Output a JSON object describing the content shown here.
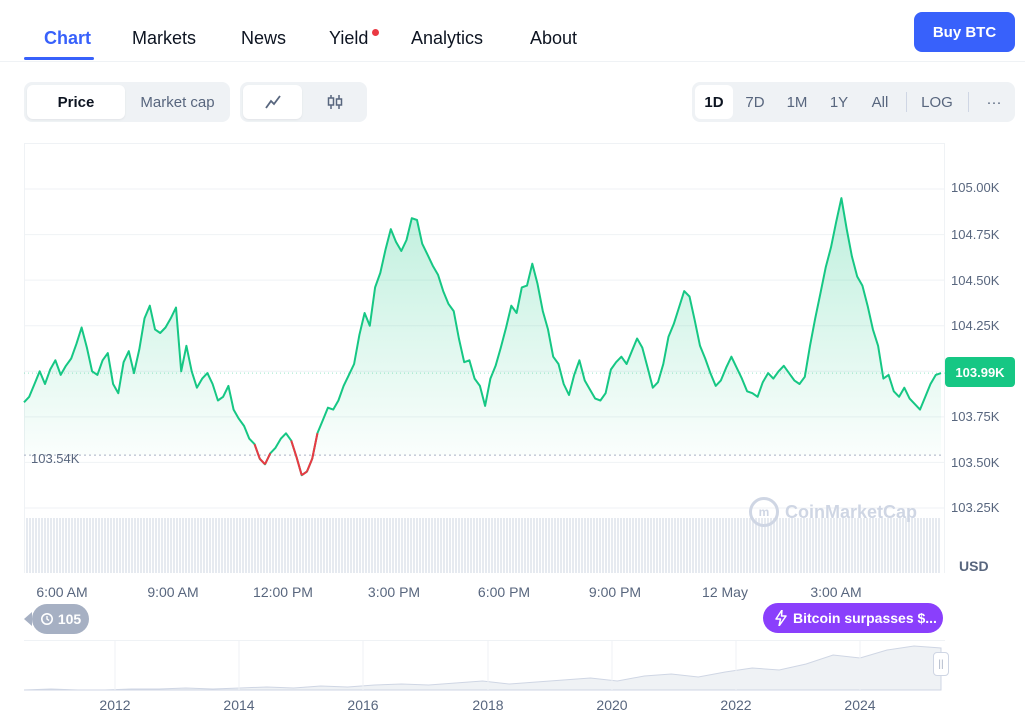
{
  "nav": {
    "tabs": [
      {
        "label": "Chart"
      },
      {
        "label": "Markets"
      },
      {
        "label": "News"
      },
      {
        "label": "Yield"
      },
      {
        "label": "Analytics"
      },
      {
        "label": "About"
      }
    ],
    "buy_label": "Buy BTC"
  },
  "controls": {
    "metric": [
      "Price",
      "Market cap"
    ],
    "chart_types": [
      "line-chart-icon",
      "candlestick-icon"
    ],
    "ranges": [
      "1D",
      "7D",
      "1M",
      "1Y",
      "All",
      "LOG"
    ],
    "more": "···"
  },
  "chart": {
    "current_price": "103.99K",
    "low_label": "103.54K",
    "currency": "USD",
    "watermark": "CoinMarketCap",
    "event_count": "105",
    "news": "Bitcoin surpasses $...",
    "y_ticks": [
      "105.00K",
      "104.75K",
      "104.50K",
      "104.25K",
      "103.75K",
      "103.50K",
      "103.25K"
    ],
    "x_ticks": [
      "6:00 AM",
      "9:00 AM",
      "12:00 PM",
      "3:00 PM",
      "6:00 PM",
      "9:00 PM",
      "12 May",
      "3:00 AM"
    ],
    "years": [
      "2012",
      "2014",
      "2016",
      "2018",
      "2020",
      "2022",
      "2024"
    ],
    "up_color": "#16c784",
    "down_color": "#ea3943"
  },
  "chart_data": {
    "type": "line",
    "ylabel": "USD",
    "ylim": [
      103.2,
      105.1
    ],
    "y_unit": "K USD",
    "x_labels": [
      "6:00 AM",
      "9:00 AM",
      "12:00 PM",
      "3:00 PM",
      "6:00 PM",
      "9:00 PM",
      "12 May",
      "3:00 AM"
    ],
    "values": [
      103.83,
      103.86,
      103.93,
      104.0,
      103.93,
      104.01,
      104.06,
      103.98,
      104.03,
      104.07,
      104.15,
      104.24,
      104.13,
      104.0,
      103.98,
      104.06,
      104.1,
      103.93,
      103.88,
      104.05,
      104.11,
      103.99,
      104.12,
      104.29,
      104.36,
      104.23,
      104.21,
      104.24,
      104.29,
      104.35,
      104.0,
      104.14,
      104.0,
      103.91,
      103.96,
      103.99,
      103.93,
      103.84,
      103.86,
      103.92,
      103.79,
      103.74,
      103.7,
      103.63,
      103.6,
      103.52,
      103.49,
      103.55,
      103.58,
      103.63,
      103.66,
      103.62,
      103.53,
      103.43,
      103.45,
      103.52,
      103.66,
      103.73,
      103.8,
      103.79,
      103.84,
      103.92,
      103.98,
      104.04,
      104.2,
      104.32,
      104.25,
      104.46,
      104.54,
      104.67,
      104.78,
      104.71,
      104.66,
      104.72,
      104.84,
      104.83,
      104.7,
      104.64,
      104.58,
      104.53,
      104.44,
      104.37,
      104.33,
      104.18,
      104.05,
      104.06,
      103.96,
      103.92,
      103.81,
      103.96,
      104.03,
      104.13,
      104.24,
      104.36,
      104.32,
      104.46,
      104.47,
      104.59,
      104.48,
      104.33,
      104.23,
      104.08,
      104.04,
      103.93,
      103.87,
      103.98,
      104.06,
      103.95,
      103.9,
      103.85,
      103.84,
      103.88,
      104.01,
      104.05,
      104.08,
      104.04,
      104.11,
      104.18,
      104.13,
      104.02,
      103.91,
      103.94,
      104.04,
      104.19,
      104.26,
      104.35,
      104.44,
      104.41,
      104.28,
      104.14,
      104.07,
      103.99,
      103.92,
      103.95,
      104.02,
      104.08,
      104.02,
      103.96,
      103.89,
      103.88,
      103.86,
      103.94,
      103.99,
      103.96,
      104.0,
      104.03,
      103.99,
      103.95,
      103.93,
      103.97,
      104.14,
      104.29,
      104.43,
      104.57,
      104.68,
      104.82,
      104.95,
      104.78,
      104.63,
      104.52,
      104.47,
      104.36,
      104.23,
      104.14,
      103.96,
      103.98,
      103.89,
      103.86,
      103.91,
      103.85,
      103.82,
      103.79,
      103.86,
      103.93,
      103.98,
      103.99
    ]
  }
}
